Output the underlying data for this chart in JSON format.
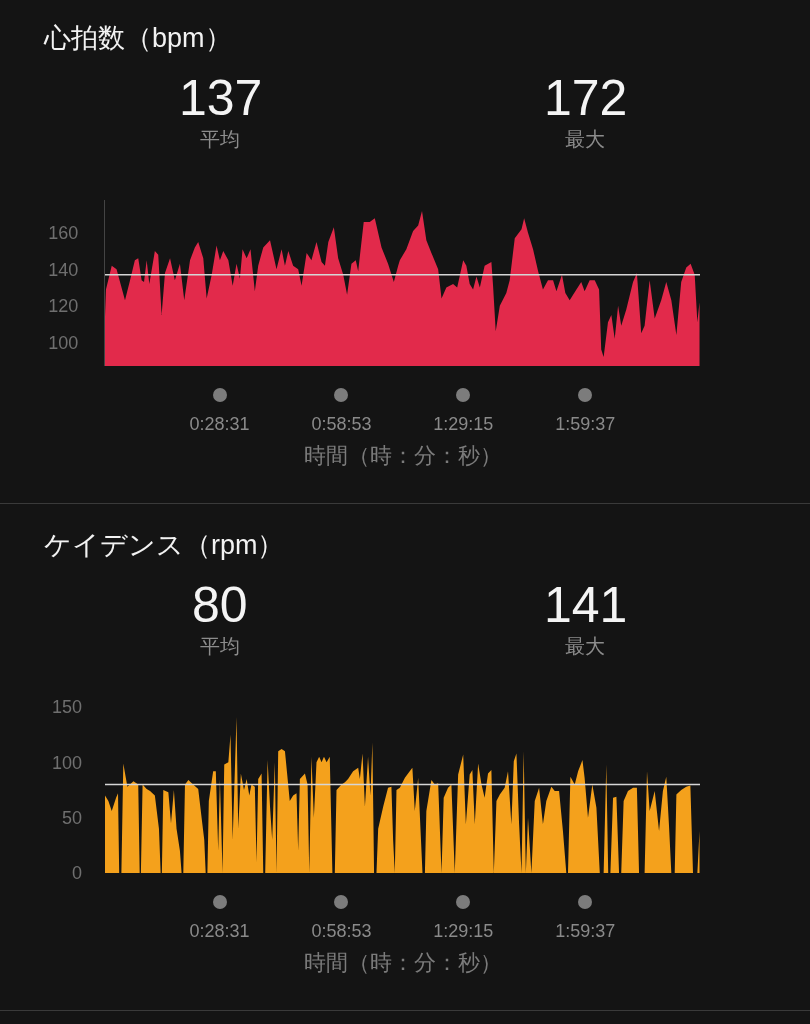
{
  "chart_data": [
    {
      "type": "area",
      "title": "心拍数（bpm）",
      "xlabel": "時間（時：分：秒）",
      "color": "#e22a4b",
      "x": [
        0,
        0.004,
        0.028,
        0.048,
        0.083,
        0.104,
        0.124,
        0.138,
        0.152,
        0.162,
        0.173,
        0.184,
        0.207,
        0.221,
        0.235,
        0.249,
        0.27,
        0.29,
        0.311,
        0.329,
        0.353,
        0.373,
        0.387,
        0.408,
        0.422,
        0.443,
        0.463,
        0.477,
        0.491,
        0.512,
        0.53,
        0.546,
        0.56,
        0.571,
        0.588,
        0.604,
        0.622,
        0.636,
        0.657,
        0.685,
        0.712,
        0.733,
        0.747,
        0.761,
        0.781,
        0.802,
        0.816,
        0.837,
        0.857,
        0.878,
        0.899,
        0.913,
        0.927,
        0.95,
        0.968,
        0.989,
        1.005,
        1.023,
        1.041,
        1.051,
        1.074,
        1.099,
        1.12,
        1.148,
        1.175,
        1.199,
        1.217,
        1.224,
        1.251,
        1.279,
        1.3,
        1.316,
        1.334,
        1.355,
        1.383,
        1.397,
        1.417,
        1.445,
        1.462,
        1.487,
        1.5,
        1.514,
        1.528,
        1.542,
        1.556,
        1.576,
        1.604,
        1.611,
        1.622,
        1.639,
        1.666,
        1.68,
        1.701,
        1.729,
        1.74,
        1.756,
        1.777,
        1.798,
        1.818,
        1.839,
        1.86,
        1.874,
        1.897,
        1.911,
        1.929,
        1.957,
        1.977,
        1.991,
        2.012,
        2.033,
        2.051,
        2.06,
        2.07,
        2.088,
        2.102,
        2.116,
        2.13,
        2.143,
        2.164,
        2.192,
        2.208,
        2.226,
        2.24,
        2.261,
        2.282,
        2.309,
        2.33,
        2.351,
        2.372,
        2.392,
        2.413,
        2.431,
        2.448,
        2.459,
        2.468
      ],
      "values": [
        114,
        129,
        142,
        140,
        123,
        134,
        145,
        146,
        134,
        133,
        145,
        132,
        150,
        148,
        115,
        138,
        146,
        134,
        143,
        123,
        145,
        152,
        155,
        146,
        124,
        137,
        153,
        145,
        150,
        145,
        131,
        143,
        135,
        151,
        146,
        151,
        128,
        142,
        152,
        156,
        140,
        151,
        142,
        150,
        142,
        140,
        131,
        149,
        145,
        155,
        144,
        142,
        155,
        163,
        146,
        137,
        126,
        143,
        145,
        139,
        166,
        166,
        168,
        152,
        143,
        133,
        142,
        145,
        151,
        161,
        164,
        172,
        156,
        149,
        140,
        124,
        130,
        132,
        130,
        145,
        142,
        132,
        129,
        136,
        130,
        142,
        144,
        131,
        106,
        120,
        127,
        134,
        157,
        162,
        168,
        160,
        151,
        139,
        129,
        134,
        134,
        128,
        137,
        127,
        123,
        129,
        133,
        128,
        134,
        134,
        129,
        96,
        92,
        111,
        115,
        102,
        120,
        109,
        118,
        133,
        138,
        105,
        109,
        134,
        113,
        123,
        133,
        123,
        104,
        133,
        141,
        143,
        137,
        111,
        122
      ],
      "xlim": [
        0,
        2.47
      ],
      "xticks": [
        {
          "value": 0.4753,
          "label": "0:28:31"
        },
        {
          "value": 0.9814,
          "label": "0:58:53"
        },
        {
          "value": 1.4875,
          "label": "1:29:15"
        },
        {
          "value": 1.9936,
          "label": "1:59:37"
        }
      ],
      "ylim": [
        87,
        178
      ],
      "yticks": [
        100,
        120,
        140,
        160
      ],
      "ref_lines": [
        {
          "axis": "y",
          "value": 137,
          "color": "#d6d6d6"
        }
      ],
      "annotations": [
        "137\n平均",
        "172\n最大"
      ]
    },
    {
      "type": "area",
      "title": "ケイデンス（rpm）",
      "xlabel": "時間（時：分：秒）",
      "color": "#f4a11c",
      "x": [
        0,
        0.014,
        0.028,
        0.046,
        0.054,
        0.059,
        0.068,
        0.076,
        0.093,
        0.118,
        0.138,
        0.144,
        0.149,
        0.156,
        0.173,
        0.187,
        0.207,
        0.224,
        0.231,
        0.236,
        0.242,
        0.263,
        0.274,
        0.286,
        0.297,
        0.311,
        0.318,
        0.325,
        0.332,
        0.346,
        0.366,
        0.387,
        0.401,
        0.412,
        0.418,
        0.425,
        0.431,
        0.449,
        0.46,
        0.47,
        0.477,
        0.488,
        0.495,
        0.512,
        0.521,
        0.53,
        0.546,
        0.553,
        0.564,
        0.577,
        0.588,
        0.599,
        0.608,
        0.622,
        0.629,
        0.636,
        0.65,
        0.657,
        0.665,
        0.675,
        0.685,
        0.694,
        0.705,
        0.712,
        0.719,
        0.733,
        0.747,
        0.756,
        0.767,
        0.781,
        0.795,
        0.802,
        0.809,
        0.83,
        0.841,
        0.848,
        0.857,
        0.867,
        0.878,
        0.889,
        0.899,
        0.909,
        0.92,
        0.933,
        0.944,
        0.954,
        0.961,
        0.982,
        0.996,
        1.009,
        1.03,
        1.051,
        1.058,
        1.069,
        1.079,
        1.092,
        1.102,
        1.11,
        1.117,
        1.127,
        1.134,
        1.155,
        1.175,
        1.189,
        1.196,
        1.203,
        1.21,
        1.224,
        1.245,
        1.265,
        1.276,
        1.286,
        1.3,
        1.31,
        1.318,
        1.328,
        1.334,
        1.355,
        1.369,
        1.383,
        1.397,
        1.406,
        1.424,
        1.438,
        1.452,
        1.466,
        1.487,
        1.498,
        1.514,
        1.525,
        1.535,
        1.549,
        1.563,
        1.576,
        1.59,
        1.604,
        1.614,
        1.625,
        1.639,
        1.659,
        1.673,
        1.687,
        1.697,
        1.708,
        1.719,
        1.729,
        1.738,
        1.747,
        1.756,
        1.77,
        1.784,
        1.802,
        1.818,
        1.832,
        1.853,
        1.867,
        1.885,
        1.901,
        1.915,
        1.922,
        1.932,
        1.95,
        1.964,
        1.982,
        1.991,
        2.005,
        2.023,
        2.04,
        2.054,
        2.07,
        2.081,
        2.089,
        2.098,
        2.109,
        2.123,
        2.134,
        2.143,
        2.153,
        2.171,
        2.192,
        2.208,
        2.217,
        2.24,
        2.25,
        2.261,
        2.282,
        2.3,
        2.316,
        2.33,
        2.341,
        2.351,
        2.365,
        2.372,
        2.392,
        2.413,
        2.43,
        2.441,
        2.459,
        2.468
      ],
      "values": [
        70,
        65,
        56,
        68,
        72,
        0,
        0,
        99,
        78,
        83,
        80,
        0,
        0,
        80,
        76,
        74,
        70,
        40,
        0,
        0,
        75,
        73,
        45,
        75,
        40,
        20,
        0,
        0,
        80,
        84,
        80,
        76,
        50,
        30,
        0,
        0,
        65,
        92,
        92,
        20,
        85,
        0,
        98,
        100,
        125,
        30,
        141,
        40,
        90,
        75,
        85,
        70,
        80,
        78,
        10,
        85,
        90,
        0,
        0,
        102,
        60,
        30,
        100,
        0,
        110,
        112,
        110,
        90,
        65,
        70,
        72,
        20,
        85,
        90,
        80,
        0,
        105,
        50,
        100,
        105,
        100,
        105,
        100,
        105,
        0,
        0,
        75,
        80,
        82,
        85,
        92,
        95,
        85,
        108,
        60,
        105,
        70,
        118,
        0,
        0,
        40,
        60,
        77,
        78,
        30,
        0,
        75,
        77,
        86,
        92,
        95,
        56,
        86,
        38,
        0,
        0,
        56,
        84,
        80,
        81,
        0,
        68,
        77,
        80,
        0,
        89,
        107,
        44,
        89,
        93,
        44,
        99,
        80,
        68,
        90,
        93,
        0,
        65,
        71,
        77,
        92,
        44,
        101,
        108,
        44,
        0,
        110,
        0,
        50,
        0,
        65,
        77,
        44,
        65,
        78,
        74,
        74,
        38,
        0,
        0,
        87,
        80,
        92,
        102,
        86,
        50,
        80,
        59,
        0,
        0,
        98,
        0,
        0,
        68,
        69,
        0,
        0,
        65,
        74,
        77,
        77,
        0,
        0,
        92,
        56,
        74,
        38,
        74,
        87,
        44,
        0,
        0,
        71,
        75,
        78,
        79,
        0,
        0,
        38
      ],
      "xlim": [
        0,
        2.47
      ],
      "xticks": [
        {
          "value": 0.4753,
          "label": "0:28:31"
        },
        {
          "value": 0.9814,
          "label": "0:58:53"
        },
        {
          "value": 1.4875,
          "label": "1:29:15"
        },
        {
          "value": 1.9936,
          "label": "1:59:37"
        }
      ],
      "ylim": [
        0,
        150
      ],
      "yticks": [
        0,
        50,
        100,
        150
      ],
      "ref_lines": [
        {
          "axis": "y",
          "value": 80,
          "color": "#d6d6d6"
        }
      ],
      "annotations": [
        "80\n平均",
        "141\n最大"
      ]
    }
  ]
}
